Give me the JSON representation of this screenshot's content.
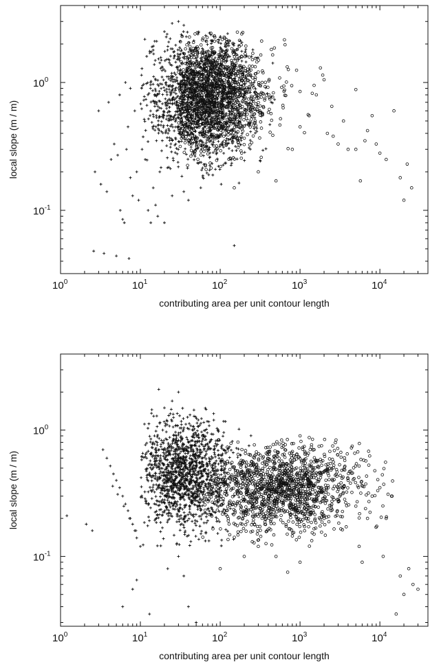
{
  "chart_data": [
    {
      "type": "scatter",
      "title": "",
      "xlabel": "contributing area per unit contour length",
      "ylabel": "local slope (m / m)",
      "x_scale": "log",
      "y_scale": "log",
      "xlim": [
        1,
        40000
      ],
      "ylim": [
        0.032,
        4.0
      ],
      "grid": false,
      "legend": "none",
      "x_ticks": [
        {
          "base": "10",
          "exp": "0",
          "value": 1
        },
        {
          "base": "10",
          "exp": "1",
          "value": 10
        },
        {
          "base": "10",
          "exp": "2",
          "value": 100
        },
        {
          "base": "10",
          "exp": "3",
          "value": 1000
        },
        {
          "base": "10",
          "exp": "4",
          "value": 10000
        }
      ],
      "y_ticks": [
        {
          "base": "10",
          "exp": "-1",
          "value": 0.1
        },
        {
          "base": "10",
          "exp": "0",
          "value": 1
        }
      ],
      "series": [
        {
          "marker": "plus",
          "points": [
            [
              2.6,
              0.048
            ],
            [
              3.5,
              0.046
            ],
            [
              5.0,
              0.044
            ],
            [
              7.2,
              0.042
            ],
            [
              2.7,
              0.2
            ],
            [
              3.2,
              0.16
            ],
            [
              3.8,
              0.14
            ],
            [
              4.3,
              0.25
            ],
            [
              4.7,
              0.33
            ],
            [
              5.2,
              0.27
            ],
            [
              5.6,
              0.1
            ],
            [
              6.0,
              0.085
            ],
            [
              6.3,
              0.08
            ],
            [
              6.7,
              0.3
            ],
            [
              7.0,
              0.45
            ],
            [
              7.5,
              0.18
            ],
            [
              8.0,
              0.13
            ],
            [
              3.0,
              0.6
            ],
            [
              4.0,
              0.7
            ],
            [
              5.5,
              0.8
            ],
            [
              6.5,
              1.0
            ],
            [
              7.5,
              0.9
            ],
            [
              8.5,
              0.6
            ],
            [
              9.0,
              0.2
            ],
            [
              9.5,
              0.12
            ],
            [
              10.5,
              0.3
            ],
            [
              11.5,
              0.25
            ],
            [
              12.5,
              0.1
            ],
            [
              13.5,
              0.08
            ],
            [
              14.5,
              0.15
            ],
            [
              15.5,
              0.11
            ],
            [
              16.5,
              0.09
            ],
            [
              17.5,
              0.2
            ],
            [
              20.0,
              0.08
            ],
            [
              25.0,
              0.13
            ],
            [
              12.0,
              1.6
            ],
            [
              14.0,
              1.9
            ],
            [
              16.0,
              2.1
            ],
            [
              20.0,
              2.5
            ],
            [
              25.0,
              2.9
            ],
            [
              30.0,
              3.0
            ],
            [
              35.0,
              2.8
            ],
            [
              150,
              0.053
            ],
            [
              40.0,
              0.12
            ],
            [
              35.0,
              0.14
            ]
          ],
          "cluster": {
            "center": [
              55,
              0.75
            ],
            "x_range": [
              10,
              500
            ],
            "y_range": [
              0.15,
              2.5
            ]
          }
        },
        {
          "marker": "circle",
          "points": [
            [
              150,
              0.15
            ],
            [
              300,
              0.2
            ],
            [
              500,
              0.17
            ],
            [
              800,
              0.3
            ],
            [
              1000,
              0.45
            ],
            [
              1300,
              0.55
            ],
            [
              1600,
              0.8
            ],
            [
              1800,
              1.3
            ],
            [
              2200,
              0.4
            ],
            [
              2600,
              0.38
            ],
            [
              3000,
              0.33
            ],
            [
              3500,
              0.5
            ],
            [
              4000,
              0.3
            ],
            [
              5000,
              0.3
            ],
            [
              5700,
              0.17
            ],
            [
              6500,
              0.35
            ],
            [
              7000,
              0.42
            ],
            [
              8000,
              0.55
            ],
            [
              9000,
              0.33
            ],
            [
              10000,
              0.28
            ],
            [
              12000,
              0.25
            ],
            [
              15000,
              0.6
            ],
            [
              18000,
              0.18
            ],
            [
              20000,
              0.12
            ],
            [
              22000,
              0.23
            ],
            [
              25000,
              0.15
            ],
            [
              5000,
              0.88
            ],
            [
              1000,
              0.85
            ],
            [
              1500,
              0.95
            ],
            [
              2000,
              1.05
            ],
            [
              2500,
              0.65
            ]
          ],
          "cluster": {
            "center": [
              80,
              0.8
            ],
            "x_range": [
              30,
              2000
            ],
            "y_range": [
              0.2,
              2.5
            ]
          }
        }
      ]
    },
    {
      "type": "scatter",
      "title": "",
      "xlabel": "contributing area per unit contour length",
      "ylabel": "local slope (m / m)",
      "x_scale": "log",
      "y_scale": "log",
      "xlim": [
        1,
        40000
      ],
      "ylim": [
        0.028,
        4.0
      ],
      "grid": false,
      "legend": "none",
      "x_ticks": [
        {
          "base": "10",
          "exp": "0",
          "value": 1
        },
        {
          "base": "10",
          "exp": "1",
          "value": 10
        },
        {
          "base": "10",
          "exp": "2",
          "value": 100
        },
        {
          "base": "10",
          "exp": "3",
          "value": 1000
        },
        {
          "base": "10",
          "exp": "4",
          "value": 10000
        }
      ],
      "y_ticks": [
        {
          "base": "10",
          "exp": "-1",
          "value": 0.1
        },
        {
          "base": "10",
          "exp": "0",
          "value": 1
        }
      ],
      "series": [
        {
          "marker": "plus",
          "points": [
            [
              1.2,
              0.21
            ],
            [
              2.1,
              0.18
            ],
            [
              2.5,
              0.16
            ],
            [
              3.4,
              0.7
            ],
            [
              3.8,
              0.6
            ],
            [
              4.2,
              0.52
            ],
            [
              4.6,
              0.45
            ],
            [
              5.0,
              0.4
            ],
            [
              5.5,
              0.35
            ],
            [
              6.0,
              0.3
            ],
            [
              6.5,
              0.26
            ],
            [
              7.0,
              0.23
            ],
            [
              7.5,
              0.2
            ],
            [
              8.0,
              0.18
            ],
            [
              8.5,
              0.16
            ],
            [
              9.0,
              0.14
            ],
            [
              10.0,
              0.12
            ],
            [
              4.5,
              0.36
            ],
            [
              5.2,
              0.31
            ],
            [
              6.2,
              0.25
            ],
            [
              7.3,
              0.2
            ],
            [
              8.8,
              0.16
            ],
            [
              6.0,
              0.04
            ],
            [
              8.0,
              0.055
            ],
            [
              9.0,
              0.065
            ],
            [
              13.0,
              0.035
            ],
            [
              17.0,
              2.1
            ],
            [
              20.0,
              1.5
            ],
            [
              25.0,
              1.7
            ],
            [
              30.0,
              2.0
            ],
            [
              40.0,
              0.04
            ],
            [
              50.0,
              0.03
            ],
            [
              12.0,
              0.6
            ],
            [
              15.0,
              0.9
            ],
            [
              22.0,
              0.08
            ],
            [
              30.0,
              0.1
            ],
            [
              35.0,
              0.07
            ]
          ],
          "cluster": {
            "center": [
              35,
              0.45
            ],
            "x_range": [
              10,
              300
            ],
            "y_range": [
              0.12,
              1.5
            ]
          }
        },
        {
          "marker": "circle",
          "points": [
            [
              100,
              0.08
            ],
            [
              200,
              0.1
            ],
            [
              300,
              0.12
            ],
            [
              500,
              0.1
            ],
            [
              700,
              0.075
            ],
            [
              1000,
              0.09
            ],
            [
              1500,
              0.15
            ],
            [
              2000,
              0.2
            ],
            [
              3000,
              0.35
            ],
            [
              4000,
              0.4
            ],
            [
              5000,
              0.25
            ],
            [
              5500,
              0.12
            ],
            [
              6000,
              0.09
            ],
            [
              7000,
              0.2
            ],
            [
              8000,
              0.3
            ],
            [
              10000,
              0.35
            ],
            [
              11000,
              0.1
            ],
            [
              12000,
              0.2
            ],
            [
              14000,
              0.3
            ],
            [
              16000,
              0.035
            ],
            [
              18000,
              0.07
            ],
            [
              20000,
              0.05
            ],
            [
              23000,
              0.08
            ],
            [
              26000,
              0.06
            ],
            [
              30000,
              0.055
            ],
            [
              50,
              0.8
            ],
            [
              60,
              0.9
            ],
            [
              1000,
              0.9
            ],
            [
              1500,
              0.7
            ]
          ],
          "cluster": {
            "center": [
              600,
              0.35
            ],
            "x_range": [
              60,
              15000
            ],
            "y_range": [
              0.12,
              0.9
            ]
          }
        }
      ]
    }
  ]
}
